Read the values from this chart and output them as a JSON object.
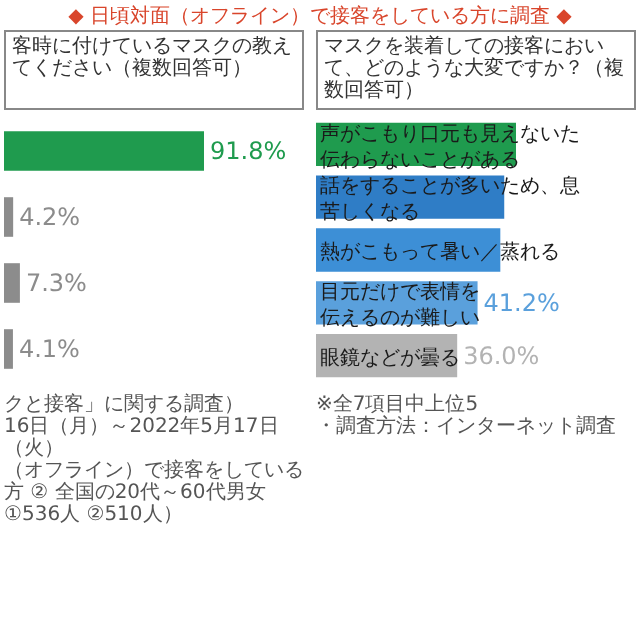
{
  "chart_data": [
    {
      "type": "bar",
      "orientation": "horizontal",
      "title": "◆ 日頃対面（オフライン）で接客をしている方に調査 ◆",
      "subtitle": "客時に付けているマスクの教えてください（複数回答可）",
      "categories": [
        null,
        null,
        null,
        null
      ],
      "values": [
        91.8,
        4.2,
        7.3,
        4.1
      ],
      "value_labels": [
        "91.8%",
        "4.2%",
        "7.3%",
        "4.1%"
      ],
      "colors": [
        "#1f9b4e",
        "#8c8c8c",
        "#8c8c8c",
        "#8c8c8c"
      ],
      "annotations": [
        "クと接客」に関する調査）",
        "16日（月）～2022年5月17日（火）",
        "（オフライン）で接客をしている方 ② 全国の20代～60代男女",
        "①536人 ②510人）"
      ]
    },
    {
      "type": "bar",
      "orientation": "horizontal",
      "subtitle": "マスクを装着しての接客において、どのような大変ですか？（複数回答可）",
      "categories": [
        "声がこもり口元も見えないた伝わらないことがある",
        "話をすることが多いため、息苦しくなる",
        "熱がこもって暑い／蒸れる",
        "目元だけで表情を伝えるのが難しい",
        "眼鏡などが曇る"
      ],
      "values": [
        51,
        48,
        47,
        41.2,
        36.0
      ],
      "value_labels": [
        null,
        null,
        null,
        "41.2%",
        "36.0%"
      ],
      "colors": [
        "#1f9b4e",
        "#2f7dc6",
        "#3d8fd6",
        "#5aa0dc",
        "#b3b3b3"
      ],
      "annotations": [
        "※全7項目中上位5",
        "・調査方法：インターネット調査"
      ]
    }
  ]
}
